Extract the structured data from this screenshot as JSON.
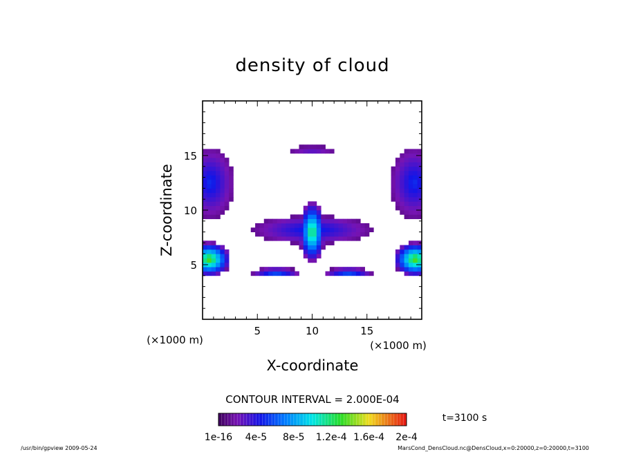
{
  "chart_data": {
    "type": "heatmap",
    "title": "density of cloud",
    "xlabel": "X-coordinate",
    "ylabel": "Z-coordinate",
    "x_unit_label": "(×1000 m)",
    "y_unit_label": "(×1000 m)",
    "xlim": [
      0,
      20
    ],
    "ylim": [
      0,
      20
    ],
    "x_ticks": [
      5,
      10,
      15
    ],
    "y_ticks": [
      5,
      10,
      15
    ],
    "contour_interval_text": "CONTOUR INTERVAL = 2.000E-04",
    "time_text": "t=3100 s",
    "colorbar_labels": [
      "1e-16",
      "4e-5",
      "8e-5",
      "1.2e-4",
      "1.6e-4",
      "2e-4"
    ],
    "colorbar_range": [
      0,
      0.0002
    ],
    "blobs": [
      {
        "name": "upper-center-cap",
        "x": 10,
        "z": 15.5,
        "rx": 2.2,
        "rz": 0.35,
        "peak": 2e-05
      },
      {
        "name": "center-fan",
        "x": 10,
        "z": 8.2,
        "rx": 5.5,
        "rz": 1.3,
        "peak": 4e-05
      },
      {
        "name": "center-core",
        "x": 10,
        "z": 8.0,
        "rx": 1.2,
        "rz": 2.8,
        "peak": 0.00012
      },
      {
        "name": "left-upper",
        "x": 0.7,
        "z": 12.5,
        "rx": 2.2,
        "rz": 3.3,
        "peak": 4e-05
      },
      {
        "name": "right-upper",
        "x": 19.3,
        "z": 12.5,
        "rx": 2.2,
        "rz": 3.3,
        "peak": 4e-05
      },
      {
        "name": "left-lower",
        "x": 0.6,
        "z": 5.5,
        "rx": 2.0,
        "rz": 1.6,
        "peak": 0.00013
      },
      {
        "name": "right-lower",
        "x": 19.4,
        "z": 5.5,
        "rx": 2.0,
        "rz": 1.6,
        "peak": 0.00013
      },
      {
        "name": "bottom-left-streak",
        "x": 6.7,
        "z": 4.3,
        "rx": 2.3,
        "rz": 0.4,
        "peak": 6e-05
      },
      {
        "name": "bottom-right-streak",
        "x": 13.3,
        "z": 4.3,
        "rx": 2.3,
        "rz": 0.4,
        "peak": 6e-05
      }
    ]
  },
  "footer": {
    "left": "/usr/bin/gpview   2009-05-24",
    "right": "MarsCond_DensCloud.nc@DensCloud,x=0:20000,z=0:20000,t=3100"
  }
}
